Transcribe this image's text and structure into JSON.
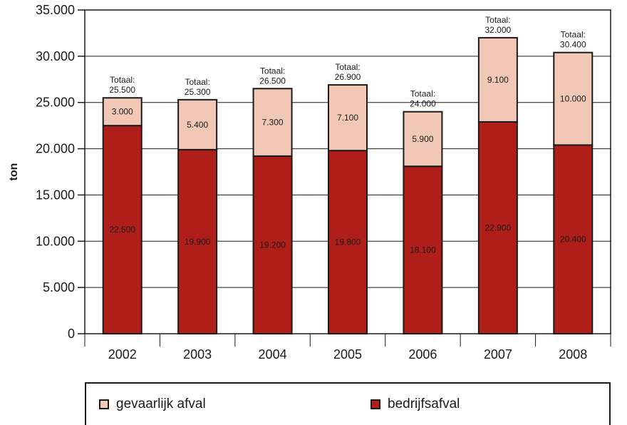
{
  "chart_data": {
    "type": "bar",
    "stacked": true,
    "ylabel": "ton",
    "ylim": [
      0,
      35000
    ],
    "yticks": [
      0,
      5000,
      10000,
      15000,
      20000,
      25000,
      30000,
      35000
    ],
    "ytick_labels": [
      "0",
      "5.000",
      "10.000",
      "15.000",
      "20.000",
      "25.000",
      "30.000",
      "35.000"
    ],
    "grid": true,
    "categories": [
      "2002",
      "2003",
      "2004",
      "2005",
      "2006",
      "2007",
      "2008"
    ],
    "series": [
      {
        "name": "bedrijfsafval",
        "color": "#b01e1a",
        "values": [
          22500,
          19900,
          19200,
          19800,
          18100,
          22900,
          20400
        ],
        "labels": [
          "22.500",
          "19.900",
          "19.200",
          "19.800",
          "18.100",
          "22.900",
          "20.400"
        ]
      },
      {
        "name": "gevaarlijk afval",
        "color": "#f0c8b5",
        "values": [
          3000,
          5400,
          7300,
          7100,
          5900,
          9100,
          10000
        ],
        "labels": [
          "3.000",
          "5.400",
          "7.300",
          "7.100",
          "5.900",
          "9.100",
          "10.000"
        ]
      }
    ],
    "totals": {
      "prefix": "Totaal:",
      "values": [
        25500,
        25300,
        26500,
        26900,
        24000,
        32000,
        30400
      ],
      "labels": [
        "25.500",
        "25.300",
        "26.500",
        "26.900",
        "24.000",
        "32.000",
        "30.400"
      ]
    },
    "legend": {
      "placement": "bottom",
      "items": [
        {
          "name": "gevaarlijk afval",
          "color": "#f0c8b5"
        },
        {
          "name": "bedrijfsafval",
          "color": "#b01e1a"
        }
      ]
    }
  }
}
